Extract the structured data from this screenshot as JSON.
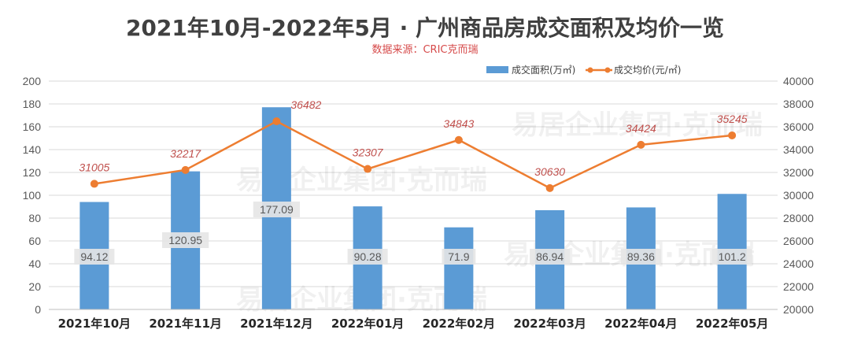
{
  "title": "2021年10月-2022年5月 · 广州商品房成交面积及均价一览",
  "source": "数据来源：CRIC克而瑞",
  "watermark": "易居企业集团·克而瑞",
  "colors": {
    "bar": "#5b9bd5",
    "line": "#ed7d31",
    "line_label": "#c0504d"
  },
  "chart_data": {
    "type": "bar",
    "categories": [
      "2021年10月",
      "2021年11月",
      "2021年12月",
      "2022年01月",
      "2022年02月",
      "2022年03月",
      "2022年04月",
      "2022年05月"
    ],
    "series": [
      {
        "name": "成交面积(万㎡)",
        "type": "bar",
        "axis": "left",
        "values": [
          94.12,
          120.95,
          177.09,
          90.28,
          71.9,
          86.94,
          89.36,
          101.2
        ]
      },
      {
        "name": "成交均价(元/㎡)",
        "type": "line",
        "axis": "right",
        "values": [
          31005,
          32217,
          36482,
          32307,
          34843,
          30630,
          34424,
          35245
        ]
      }
    ],
    "y_left": {
      "min": 0,
      "max": 200,
      "step": 20
    },
    "y_right": {
      "min": 20000,
      "max": 40000,
      "step": 2000
    },
    "legend_position": "top-right",
    "grid": true
  }
}
